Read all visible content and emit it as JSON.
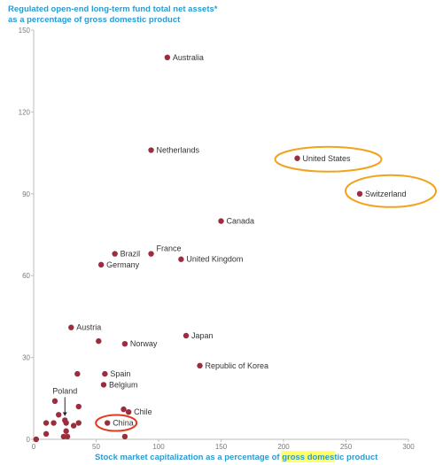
{
  "chart_data": {
    "type": "scatter",
    "title_lines": [
      "Regulated open-end long-term fund total net assets*",
      "as a percentage of gross domestic product"
    ],
    "xlabel": {
      "before": "Stock market capitalization as a percentage of ",
      "highlight1": "gross",
      "middle": " ",
      "highlight2": "domes",
      "after": "tic product"
    },
    "xlim": [
      0,
      300
    ],
    "ylim": [
      0,
      150
    ],
    "xticks": [
      0,
      50,
      100,
      150,
      200,
      250,
      300
    ],
    "yticks": [
      0,
      30,
      60,
      90,
      120,
      150
    ],
    "grid": false,
    "colors": {
      "point": "#9b2e3d",
      "title": "#2b9bd2",
      "axis": "#bdbdbd",
      "ellipse": "#f2a21b",
      "ellipse_china": "#e23a1f",
      "highlight": "#ffff66"
    },
    "labeled_points": [
      {
        "label": "Australia",
        "x": 107,
        "y": 140,
        "circled": false
      },
      {
        "label": "Netherlands",
        "x": 94,
        "y": 106,
        "circled": false
      },
      {
        "label": "United States",
        "x": 211,
        "y": 103,
        "circled": true
      },
      {
        "label": "Switzerland",
        "x": 261,
        "y": 90,
        "circled": true
      },
      {
        "label": "Canada",
        "x": 150,
        "y": 80,
        "circled": false
      },
      {
        "label": "Brazil",
        "x": 65,
        "y": 68,
        "circled": false
      },
      {
        "label": "France",
        "x": 94,
        "y": 68,
        "circled": false
      },
      {
        "label": "United Kingdom",
        "x": 118,
        "y": 66,
        "circled": false
      },
      {
        "label": "Germany",
        "x": 54,
        "y": 64,
        "circled": false
      },
      {
        "label": "Austria",
        "x": 30,
        "y": 41,
        "circled": false
      },
      {
        "label": "Japan",
        "x": 122,
        "y": 38,
        "circled": false
      },
      {
        "label": "Norway",
        "x": 73,
        "y": 35,
        "circled": false
      },
      {
        "label": "Republic of Korea",
        "x": 133,
        "y": 27,
        "circled": false
      },
      {
        "label": "Spain",
        "x": 57,
        "y": 24,
        "circled": false
      },
      {
        "label": "Belgium",
        "x": 56,
        "y": 20,
        "circled": false
      },
      {
        "label": "Chile",
        "x": 76,
        "y": 10,
        "circled": false
      },
      {
        "label": "China",
        "x": 59,
        "y": 6,
        "circled": true
      },
      {
        "label": "Poland",
        "x": 25,
        "y": 7,
        "circled": false
      }
    ],
    "unlabeled_points": [
      {
        "x": 52,
        "y": 36
      },
      {
        "x": 35,
        "y": 24
      },
      {
        "x": 17,
        "y": 14
      },
      {
        "x": 36,
        "y": 12
      },
      {
        "x": 20,
        "y": 9
      },
      {
        "x": 26,
        "y": 6
      },
      {
        "x": 10,
        "y": 6
      },
      {
        "x": 16,
        "y": 6
      },
      {
        "x": 32,
        "y": 5
      },
      {
        "x": 36,
        "y": 6
      },
      {
        "x": 10,
        "y": 2
      },
      {
        "x": 24,
        "y": 1
      },
      {
        "x": 26,
        "y": 3
      },
      {
        "x": 27,
        "y": 1
      },
      {
        "x": 2,
        "y": 0
      },
      {
        "x": 72,
        "y": 11
      },
      {
        "x": 73,
        "y": 1
      }
    ]
  }
}
